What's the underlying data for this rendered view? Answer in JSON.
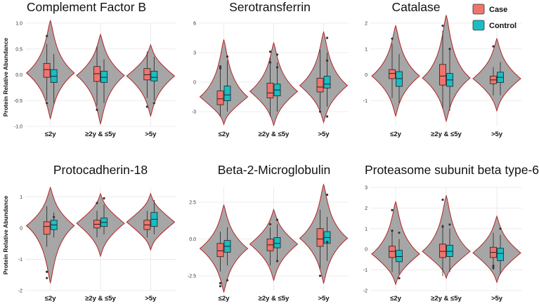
{
  "figure": {
    "y_axis_label": "Protein Relative Abundance",
    "legend": [
      {
        "label": "Case",
        "color": "#F0746C"
      },
      {
        "label": "Control",
        "color": "#19BDC4"
      }
    ],
    "colors": {
      "violin_fill": "#A6A6A6",
      "violin_stroke": "#B32428",
      "grid": "#E6E6E6"
    }
  },
  "chart_data": [
    {
      "type": "violin",
      "title": "Complement Factor B",
      "categories": [
        "≤2y",
        "≥2y & ≤5y",
        ">5y"
      ],
      "ylim": [
        -1.0,
        1.0
      ],
      "yticks": [
        -1.0,
        -0.5,
        0.0,
        0.5,
        1.0
      ],
      "tick_labels": [
        "-1.0",
        "-0.5",
        "0.0",
        "0.5",
        "1.0"
      ],
      "groups": [
        {
          "violin": [
            -0.85,
            1.05
          ],
          "case": [
            -0.05,
            0.1,
            0.22,
            -0.5,
            0.6
          ],
          "control": [
            -0.15,
            -0.03,
            0.1,
            -0.55,
            0.4
          ],
          "outliers": [
            [
              -0.55,
              0.75
            ]
          ]
        },
        {
          "violin": [
            -0.95,
            0.78
          ],
          "case": [
            -0.13,
            0.02,
            0.16,
            -0.6,
            0.55
          ],
          "control": [
            -0.15,
            -0.05,
            0.07,
            -0.55,
            0.3
          ],
          "outliers": [
            [
              -0.68
            ]
          ]
        },
        {
          "violin": [
            -0.8,
            0.58
          ],
          "case": [
            -0.1,
            0.0,
            0.12,
            -0.45,
            0.45
          ],
          "control": [
            -0.12,
            -0.05,
            0.07,
            -0.5,
            0.35
          ],
          "outliers": [
            [
              -0.62
            ],
            [
              -0.55
            ]
          ]
        }
      ]
    },
    {
      "type": "violin",
      "title": "Serotransferrin",
      "categories": [
        "≤2y",
        "≥2y & ≤5y",
        ">5y"
      ],
      "ylim": [
        -4.5,
        6.0
      ],
      "yticks": [
        -3,
        0,
        3,
        6
      ],
      "tick_labels": [
        "-3",
        "0",
        "3",
        "6"
      ],
      "groups": [
        {
          "violin": [
            -4.3,
            4.3
          ],
          "case": [
            -2.3,
            -1.7,
            -0.9,
            -3.5,
            1.5
          ],
          "control": [
            -1.9,
            -1.3,
            -0.4,
            -3.0,
            2.2
          ],
          "outliers": [
            [
              1.6,
              1.4
            ],
            [
              2.6
            ]
          ]
        },
        {
          "violin": [
            -4.4,
            4.0
          ],
          "case": [
            -1.6,
            -1.1,
            -0.1,
            -3.5,
            2.5
          ],
          "control": [
            -1.4,
            -0.8,
            -0.2,
            -3.0,
            2.0
          ],
          "outliers": [
            [
              2.0,
              3.1
            ],
            [
              2.8,
              1.5
            ]
          ]
        },
        {
          "violin": [
            -4.1,
            5.1
          ],
          "case": [
            -1.0,
            -0.5,
            0.4,
            -2.8,
            3.3
          ],
          "control": [
            -0.6,
            -0.2,
            0.6,
            -2.5,
            3.0
          ],
          "outliers": [
            [
              -3.0
            ],
            [
              -3.5,
              4.5,
              2.2
            ]
          ]
        }
      ]
    },
    {
      "type": "violin",
      "title": "Catalase",
      "categories": [
        "≤2y",
        "≥2y & ≤5y",
        ">5y"
      ],
      "ylim": [
        -2.0,
        2.0
      ],
      "yticks": [
        -1,
        0,
        1,
        2
      ],
      "tick_labels": [
        "-1",
        "0",
        "1",
        "2"
      ],
      "groups": [
        {
          "violin": [
            -1.6,
            1.9
          ],
          "case": [
            -0.15,
            0.05,
            0.2,
            -0.9,
            1.2
          ],
          "control": [
            -0.45,
            -0.15,
            0.12,
            -1.1,
            0.8
          ],
          "outliers": [
            [
              1.4
            ],
            []
          ]
        },
        {
          "violin": [
            -1.8,
            2.3
          ],
          "case": [
            -0.4,
            -0.05,
            0.4,
            -1.3,
            1.7
          ],
          "control": [
            -0.45,
            -0.2,
            0.05,
            -1.4,
            1.0
          ],
          "outliers": [
            [
              1.9
            ],
            [
              1.0
            ]
          ]
        },
        {
          "violin": [
            -1.4,
            1.4
          ],
          "case": [
            -0.35,
            -0.2,
            -0.05,
            -0.8,
            0.3
          ],
          "control": [
            -0.3,
            -0.1,
            0.1,
            -0.8,
            0.5
          ],
          "outliers": [
            [
              1.1
            ],
            []
          ]
        }
      ]
    },
    {
      "type": "violin",
      "title": "Protocadherin-18",
      "categories": [
        "≤2y",
        "≥2y & ≤5y",
        ">5y"
      ],
      "ylim": [
        -2.0,
        1.3
      ],
      "yticks": [
        -2,
        -1,
        0,
        1
      ],
      "tick_labels": [
        "-2",
        "-1",
        "0",
        "1"
      ],
      "groups": [
        {
          "violin": [
            -1.75,
            1.3
          ],
          "case": [
            -0.2,
            0.05,
            0.2,
            -0.6,
            0.7
          ],
          "control": [
            -0.05,
            0.1,
            0.25,
            -0.3,
            0.5
          ],
          "outliers": [
            [
              -1.4,
              -1.6
            ],
            [
              0.35
            ]
          ]
        },
        {
          "violin": [
            -0.9,
            1.1
          ],
          "case": [
            0.0,
            0.12,
            0.25,
            -0.3,
            0.55
          ],
          "control": [
            0.05,
            0.18,
            0.32,
            -0.2,
            0.75
          ],
          "outliers": [
            [
              0.8
            ],
            [
              0.95
            ]
          ]
        },
        {
          "violin": [
            -0.7,
            1.1
          ],
          "case": [
            -0.05,
            0.1,
            0.25,
            -0.3,
            0.55
          ],
          "control": [
            0.05,
            0.28,
            0.5,
            -0.2,
            0.9
          ],
          "outliers": [
            [],
            []
          ]
        }
      ]
    },
    {
      "type": "violin",
      "title": "Beta-2-Microglobulin",
      "categories": [
        "≤2y",
        "≥2y & ≤5y",
        ">5y"
      ],
      "ylim": [
        -3.5,
        3.5
      ],
      "yticks": [
        -2.5,
        0.0,
        2.5
      ],
      "tick_labels": [
        "-2.5",
        "0.0",
        "2.5"
      ],
      "groups": [
        {
          "violin": [
            -3.6,
            2.3
          ],
          "case": [
            -1.2,
            -0.8,
            -0.3,
            -2.2,
            0.5
          ],
          "control": [
            -0.9,
            -0.5,
            -0.1,
            -1.8,
            0.8
          ],
          "outliers": [
            [
              -3.0,
              -3.2
            ],
            [
              -2.8
            ]
          ]
        },
        {
          "violin": [
            -2.8,
            2.0
          ],
          "case": [
            -0.8,
            -0.4,
            0.0,
            -1.8,
            0.8
          ],
          "control": [
            -0.6,
            -0.3,
            0.1,
            -1.5,
            1.0
          ],
          "outliers": [
            [
              1.0
            ],
            [
              -1.5,
              1.3
            ]
          ]
        },
        {
          "violin": [
            -3.0,
            3.7
          ],
          "case": [
            -0.5,
            0.0,
            0.7,
            -2.0,
            2.0
          ],
          "control": [
            -0.3,
            0.1,
            0.5,
            -1.5,
            1.5
          ],
          "outliers": [
            [
              -2.5
            ],
            [
              3.0,
              -0.2
            ]
          ]
        }
      ]
    },
    {
      "type": "violin",
      "title": "Proteasome subunit beta type-6",
      "categories": [
        "≤2y",
        "≥2y & ≤5y",
        ">5y"
      ],
      "ylim": [
        -2.0,
        3.0
      ],
      "yticks": [
        -2,
        -1,
        0,
        1,
        2,
        3
      ],
      "tick_labels": [
        "-2",
        "-1",
        "0",
        "1",
        "2",
        "3"
      ],
      "groups": [
        {
          "violin": [
            -1.7,
            2.3
          ],
          "case": [
            -0.4,
            -0.1,
            0.15,
            -1.1,
            0.9
          ],
          "control": [
            -0.6,
            -0.35,
            -0.05,
            -1.2,
            0.5
          ],
          "outliers": [
            [
              1.9,
              0.9
            ],
            [
              0.8,
              -1.4
            ]
          ]
        },
        {
          "violin": [
            -1.4,
            2.6
          ],
          "case": [
            -0.4,
            -0.1,
            0.25,
            -1.3,
            1.2
          ],
          "control": [
            -0.35,
            -0.1,
            0.2,
            -1.1,
            1.0
          ],
          "outliers": [
            [
              2.4,
              1.1
            ],
            [
              1.2
            ]
          ]
        },
        {
          "violin": [
            -1.6,
            1.6
          ],
          "case": [
            -0.4,
            -0.15,
            0.1,
            -1.0,
            0.8
          ],
          "control": [
            -0.55,
            -0.2,
            0.05,
            -1.2,
            0.7
          ],
          "outliers": [
            [
              -0.8,
              -0.9
            ],
            [
              1.0
            ]
          ]
        }
      ]
    }
  ]
}
